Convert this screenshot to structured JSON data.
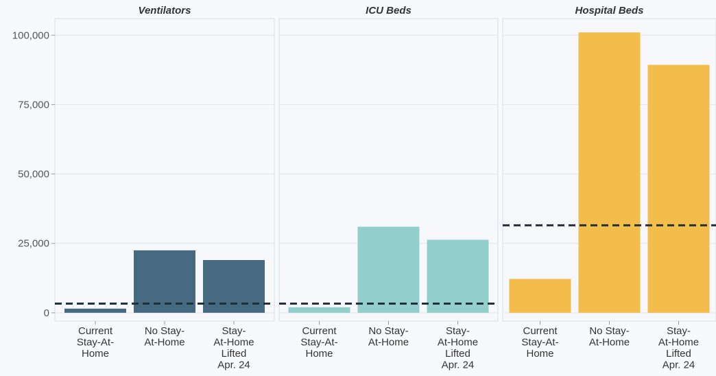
{
  "chart_data": {
    "type": "bar",
    "ylim": [
      -3000,
      106000
    ],
    "yticks": [
      0,
      25000,
      50000,
      75000,
      100000
    ],
    "ytick_labels": [
      "0",
      "25,000",
      "50,000",
      "75,000",
      "100,000"
    ],
    "grid": true,
    "categories": [
      [
        "Current",
        "Stay-At-",
        "Home"
      ],
      [
        "No Stay-",
        "At-Home"
      ],
      [
        "Stay-",
        "At-Home",
        "Lifted",
        "Apr. 24"
      ]
    ],
    "panels": [
      {
        "title": "Ventilators",
        "color": "#456a82",
        "values": [
          1500,
          22500,
          19000
        ],
        "capacity": 3300
      },
      {
        "title": "ICU Beds",
        "color": "#92cfca",
        "values": [
          2000,
          31000,
          26300
        ],
        "capacity": 3300
      },
      {
        "title": "Hospital Beds",
        "color": "#f2bd4a",
        "values": [
          12200,
          101000,
          89300
        ],
        "capacity": 31500
      }
    ]
  }
}
